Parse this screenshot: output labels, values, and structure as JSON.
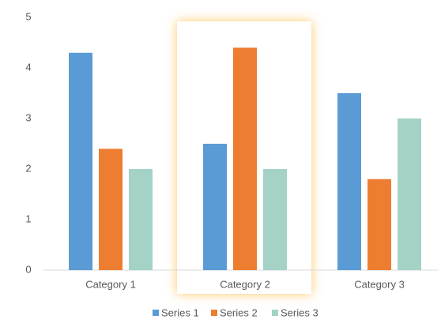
{
  "chart_data": {
    "type": "bar",
    "categories": [
      "Category 1",
      "Category 2",
      "Category 3"
    ],
    "series": [
      {
        "name": "Series 1",
        "color": "#5b9bd5",
        "values": [
          4.3,
          2.5,
          3.5
        ]
      },
      {
        "name": "Series 2",
        "color": "#ed7d31",
        "values": [
          2.4,
          4.4,
          1.8
        ]
      },
      {
        "name": "Series 3",
        "color": "#a5d2c7",
        "values": [
          2,
          2,
          3
        ]
      }
    ],
    "ylim": [
      0,
      5
    ],
    "yticks": [
      0,
      1,
      2,
      3,
      4,
      5
    ],
    "grid": false,
    "legend": "bottom",
    "highlight": 1
  }
}
